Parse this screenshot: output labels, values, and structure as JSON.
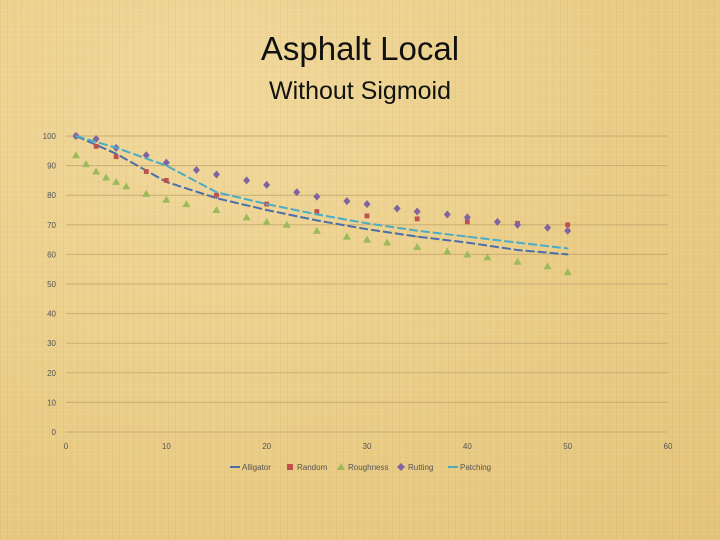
{
  "slide": {
    "title": "Asphalt Local",
    "subtitle": "Without Sigmoid"
  },
  "chart_data": {
    "type": "line",
    "title": "",
    "xlabel": "",
    "ylabel": "",
    "xlim": [
      0,
      60
    ],
    "ylim": [
      0,
      100
    ],
    "x_ticks": [
      0,
      10,
      20,
      30,
      40,
      50,
      60
    ],
    "y_ticks": [
      0,
      10,
      20,
      30,
      40,
      50,
      60,
      70,
      80,
      90,
      100
    ],
    "grid": "horizontal",
    "legend_position": "bottom",
    "series": [
      {
        "name": "Alligator",
        "color": "#4a6ea9",
        "style": "dash",
        "x": [
          1,
          5,
          10,
          15,
          20,
          25,
          30,
          35,
          40,
          45,
          50
        ],
        "y": [
          100,
          94,
          84.5,
          79,
          75,
          71.5,
          68.5,
          66,
          64,
          61.5,
          60
        ]
      },
      {
        "name": "Random",
        "color": "#c0504d",
        "style": "square",
        "x": [
          1,
          3,
          5,
          8,
          10,
          15,
          20,
          25,
          30,
          35,
          40,
          45,
          50
        ],
        "y": [
          100,
          96.5,
          93,
          88,
          85,
          80,
          77,
          74.5,
          73,
          72,
          71,
          70.5,
          70
        ]
      },
      {
        "name": "Roughness",
        "color": "#9bbb59",
        "style": "triangle",
        "x": [
          1,
          2,
          3,
          4,
          5,
          6,
          8,
          10,
          12,
          15,
          18,
          20,
          22,
          25,
          28,
          30,
          32,
          35,
          38,
          40,
          42,
          45,
          48,
          50
        ],
        "y": [
          93.5,
          90.5,
          88,
          86,
          84.5,
          83,
          80.5,
          78.5,
          77,
          75,
          72.5,
          71,
          70,
          68,
          66,
          65,
          64,
          62.5,
          61,
          60,
          59,
          57.5,
          56,
          54
        ]
      },
      {
        "name": "Rutting",
        "color": "#8064a2",
        "style": "diamond",
        "x": [
          1,
          3,
          5,
          8,
          10,
          13,
          15,
          18,
          20,
          23,
          25,
          28,
          30,
          33,
          35,
          38,
          40,
          43,
          45,
          48,
          50
        ],
        "y": [
          100,
          99,
          96,
          93.5,
          91,
          88.5,
          87,
          85,
          83.5,
          81,
          79.5,
          78,
          77,
          75.5,
          74.5,
          73.5,
          72.5,
          71,
          70,
          69,
          68
        ]
      },
      {
        "name": "Patching",
        "color": "#4bacc6",
        "style": "dash",
        "x": [
          1,
          5,
          10,
          15,
          20,
          25,
          30,
          35,
          40,
          45,
          50
        ],
        "y": [
          100,
          96,
          90,
          81,
          77,
          73.5,
          70.5,
          68,
          66,
          64,
          62
        ]
      }
    ]
  }
}
